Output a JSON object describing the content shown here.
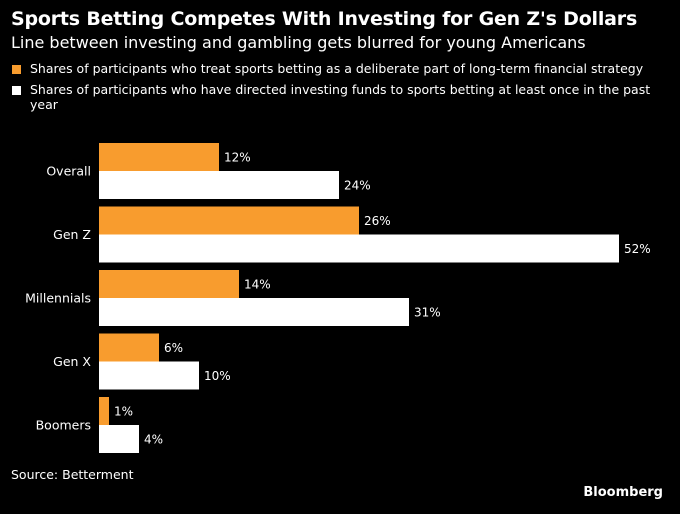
{
  "header": {
    "title": "Sports Betting Competes With Investing for Gen Z's Dollars",
    "subtitle": "Line between investing and gambling gets blurred for young Americans"
  },
  "footer": {
    "source": "Source: Betterment",
    "brand": "Bloomberg"
  },
  "colors": {
    "series_1": "#f89c2e",
    "series_2": "#ffffff",
    "background": "#000000",
    "text": "#ffffff"
  },
  "chart_data": {
    "type": "bar",
    "orientation": "horizontal",
    "title": "Sports Betting Competes With Investing for Gen Z's Dollars",
    "subtitle": "Line between investing and gambling gets blurred for young Americans",
    "categories": [
      "Overall",
      "Gen Z",
      "Millennials",
      "Gen X",
      "Boomers"
    ],
    "series": [
      {
        "name": "Shares of participants who treat sports betting as a deliberate part of long-term financial strategy",
        "values": [
          12,
          26,
          14,
          6,
          1
        ],
        "labels": [
          "12%",
          "26%",
          "14%",
          "6%",
          "1%"
        ]
      },
      {
        "name": "Shares of participants who have directed investing funds to sports betting at least once in the past year",
        "values": [
          24,
          52,
          31,
          10,
          4
        ],
        "labels": [
          "24%",
          "52%",
          "31%",
          "10%",
          "4%"
        ]
      }
    ],
    "value_unit": "%",
    "xlim": [
      0,
      52
    ],
    "grid": false,
    "legend_position": "top-left"
  }
}
